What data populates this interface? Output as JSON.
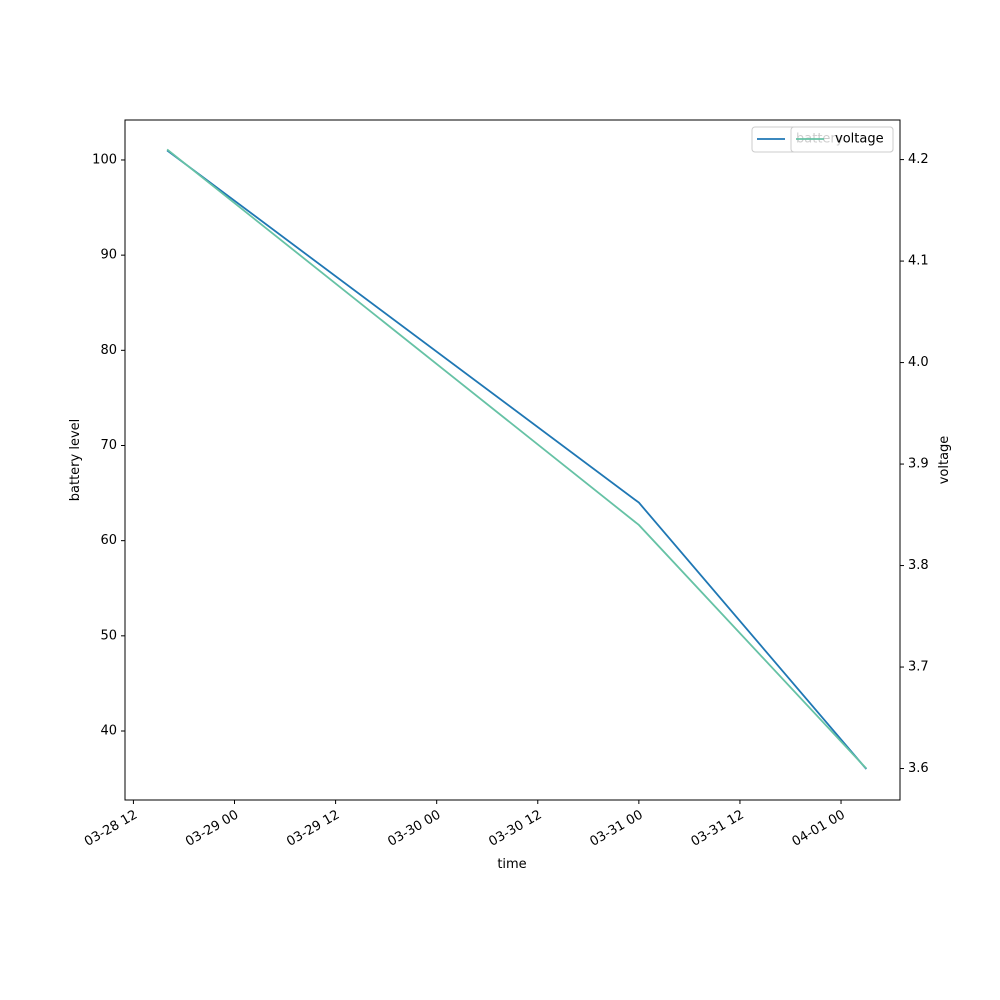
{
  "chart_data": {
    "type": "line",
    "x_label": "time",
    "y_label": "battery level",
    "y2_label": "voltage",
    "x": [
      "03-28 16",
      "03-31 00",
      "04-01 03"
    ],
    "xlim": [
      "03-28 11",
      "04-01 07"
    ],
    "xticks": [
      "03-28 12",
      "03-29 00",
      "03-29 12",
      "03-30 00",
      "03-30 12",
      "03-31 00",
      "03-31 12",
      "04-01 00"
    ],
    "ylim": [
      32.75,
      104.2
    ],
    "yticks": [
      40,
      50,
      60,
      70,
      80,
      90,
      100
    ],
    "y2lim": [
      3.569,
      4.239
    ],
    "y2ticks": [
      3.6,
      3.7,
      3.8,
      3.9,
      {
        "value": 4.0,
        "label": "4.0"
      },
      4.1,
      4.2
    ],
    "series": [
      {
        "name": "battery",
        "color": "#1f77b4",
        "values": [
          101,
          64,
          36
        ]
      },
      {
        "name": "voltage",
        "color": "#66c2a5",
        "values": [
          4.21,
          3.84,
          3.6
        ],
        "axis": "y2"
      }
    ],
    "legend": "upper right"
  }
}
